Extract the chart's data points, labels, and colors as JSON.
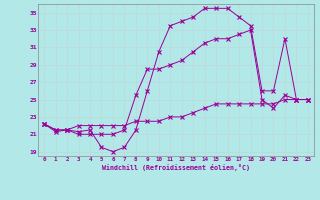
{
  "bg_color": "#b2e8e8",
  "line_color": "#990099",
  "xlim": [
    -0.5,
    23.5
  ],
  "ylim": [
    18.5,
    36.0
  ],
  "xticks": [
    0,
    1,
    2,
    3,
    4,
    5,
    6,
    7,
    8,
    9,
    10,
    11,
    12,
    13,
    14,
    15,
    16,
    17,
    18,
    19,
    20,
    21,
    22,
    23
  ],
  "yticks": [
    19,
    21,
    23,
    25,
    27,
    29,
    31,
    33,
    35
  ],
  "xlabel": "Windchill (Refroidissement éolien,°C)",
  "line1_x": [
    0,
    1,
    2,
    3,
    4,
    5,
    6,
    7,
    8,
    9,
    10,
    11,
    12,
    13,
    14,
    15,
    16,
    17,
    18,
    19,
    20,
    21,
    22,
    23
  ],
  "line1_y": [
    22.2,
    21.3,
    21.5,
    21.3,
    21.5,
    19.5,
    19.0,
    19.5,
    21.5,
    26.0,
    30.5,
    33.5,
    34.0,
    34.5,
    35.5,
    35.5,
    35.5,
    34.5,
    33.5,
    26.0,
    26.0,
    32.0,
    25.0,
    25.0
  ],
  "line2_x": [
    0,
    1,
    2,
    3,
    4,
    5,
    6,
    7,
    8,
    9,
    10,
    11,
    12,
    13,
    14,
    15,
    16,
    17,
    18,
    19,
    20,
    21,
    22,
    23
  ],
  "line2_y": [
    22.2,
    21.5,
    21.5,
    21.0,
    21.0,
    21.0,
    21.0,
    21.5,
    25.5,
    28.5,
    28.5,
    29.0,
    29.5,
    30.5,
    31.5,
    32.0,
    32.0,
    32.5,
    33.0,
    25.0,
    24.0,
    25.5,
    25.0,
    25.0
  ],
  "line3_x": [
    0,
    1,
    2,
    3,
    4,
    5,
    6,
    7,
    8,
    9,
    10,
    11,
    12,
    13,
    14,
    15,
    16,
    17,
    18,
    19,
    20,
    21,
    22,
    23
  ],
  "line3_y": [
    22.2,
    21.5,
    21.5,
    22.0,
    22.0,
    22.0,
    22.0,
    22.0,
    22.5,
    22.5,
    22.5,
    23.0,
    23.0,
    23.5,
    24.0,
    24.5,
    24.5,
    24.5,
    24.5,
    24.5,
    24.5,
    25.0,
    25.0,
    25.0
  ]
}
